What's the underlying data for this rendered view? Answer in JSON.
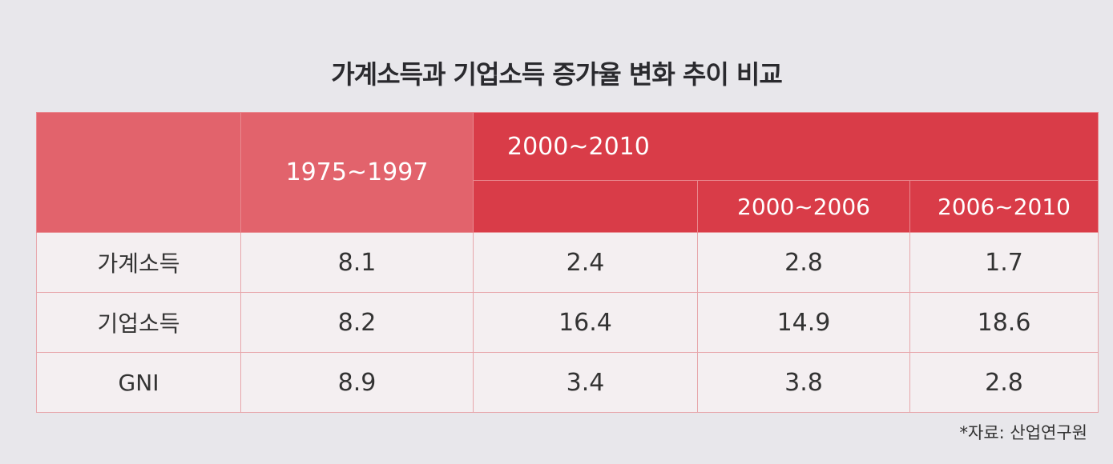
{
  "title": "가계소득과 기업소득 증가율 변화 추이 비교",
  "table": {
    "header": [
      "1975~1997",
      "2000~2010",
      "2000~2006",
      "2006~2010"
    ],
    "rows": [
      [
        "가계소득",
        8.1,
        2.4,
        2.8,
        1.7
      ],
      [
        "기업소득",
        8.2,
        16.4,
        14.9,
        18.6
      ],
      [
        "GNI",
        8.9,
        3.4,
        3.8,
        2.8
      ]
    ]
  },
  "source": "*자료: 산업연구원"
}
